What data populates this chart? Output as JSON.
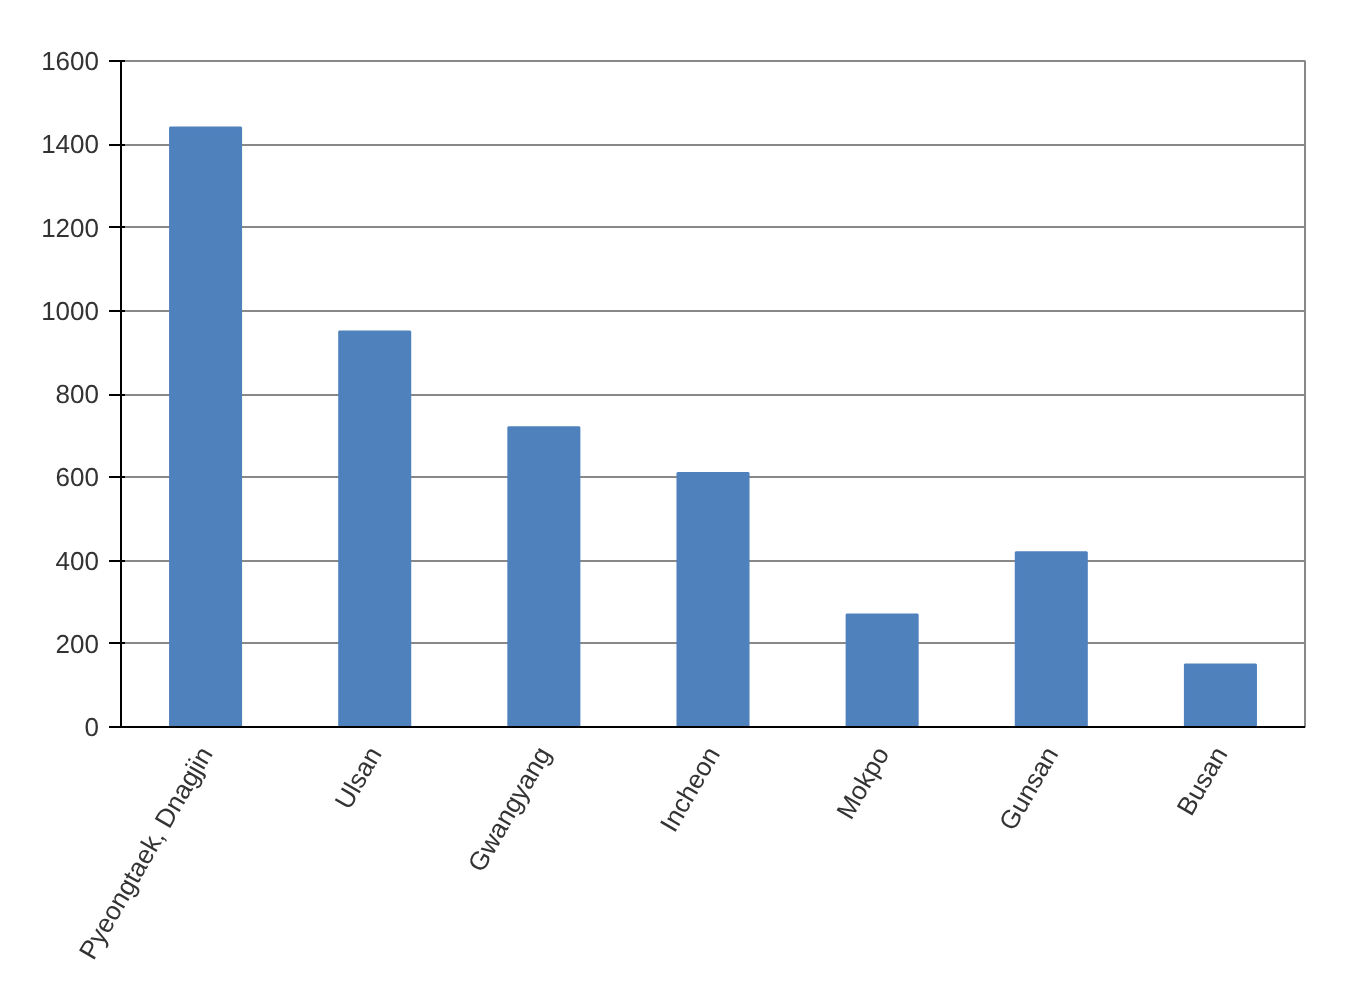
{
  "chart_data": {
    "type": "bar",
    "categories": [
      "Pyeongtaek, Dnagjin",
      "Ulsan",
      "Gwangyang",
      "Incheon",
      "Mokpo",
      "Gunsan",
      "Busan"
    ],
    "values": [
      1440,
      950,
      720,
      610,
      270,
      420,
      150
    ],
    "color": "#4f81bd",
    "ylim": [
      0,
      1600
    ],
    "yticks": [
      0,
      200,
      400,
      600,
      800,
      1000,
      1200,
      1400,
      1600
    ],
    "grid": "y"
  }
}
